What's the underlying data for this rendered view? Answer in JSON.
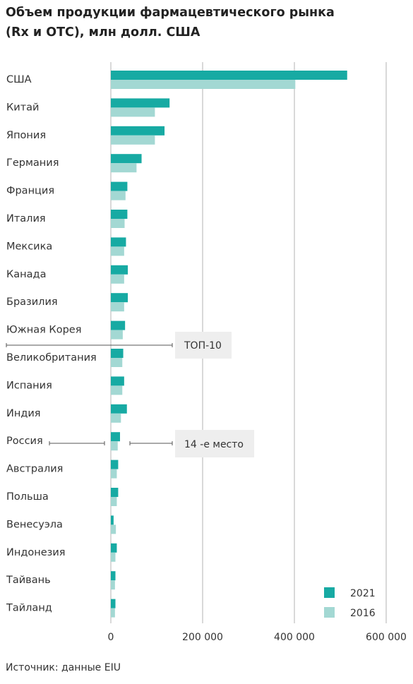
{
  "chart_data": {
    "type": "bar",
    "title_lines": [
      "Объем продукции фармацевтического рынка",
      "(Rx и OTC), млн долл. США"
    ],
    "xlabel": "",
    "ylabel": "",
    "categories": [
      "США",
      "Китай",
      "Япония",
      "Германия",
      "Франция",
      "Италия",
      "Мексика",
      "Канада",
      "Бразилия",
      "Южная Корея",
      "Великобритания",
      "Испания",
      "Индия",
      "Россия",
      "Австралия",
      "Польша",
      "Венесуэла",
      "Индонезия",
      "Тайвань",
      "Тайланд"
    ],
    "series": [
      {
        "name": "2021",
        "color": "#17aaa3",
        "values": [
          515000,
          128000,
          117000,
          67000,
          36000,
          36000,
          33000,
          37000,
          37000,
          31000,
          27000,
          29000,
          35000,
          20000,
          16000,
          16000,
          6000,
          13000,
          10000,
          10000
        ]
      },
      {
        "name": "2016",
        "color": "#a3d8d3",
        "values": [
          402000,
          96000,
          96000,
          56000,
          32000,
          30000,
          29000,
          29000,
          29000,
          26000,
          25000,
          25000,
          22000,
          15000,
          13000,
          13000,
          11000,
          10000,
          9000,
          9000
        ]
      }
    ],
    "xlim": [
      0,
      600000
    ],
    "ticks": [
      0,
      200000,
      400000,
      600000
    ],
    "tick_labels": [
      "0",
      "200 000",
      "400 000",
      "600 000"
    ],
    "grid": true,
    "orientation": "horizontal",
    "legend_position": "bottom-right",
    "annotations": [
      {
        "text": "ТОП-10",
        "after_category": "Южная Корея"
      },
      {
        "text": "14 -е место",
        "category": "Россия"
      }
    ]
  },
  "source": "Источник: данные EIU",
  "colors": {
    "grid": "#b3b3b3",
    "annotation_box": "#eeeeee",
    "annotation_line": "#555555"
  }
}
